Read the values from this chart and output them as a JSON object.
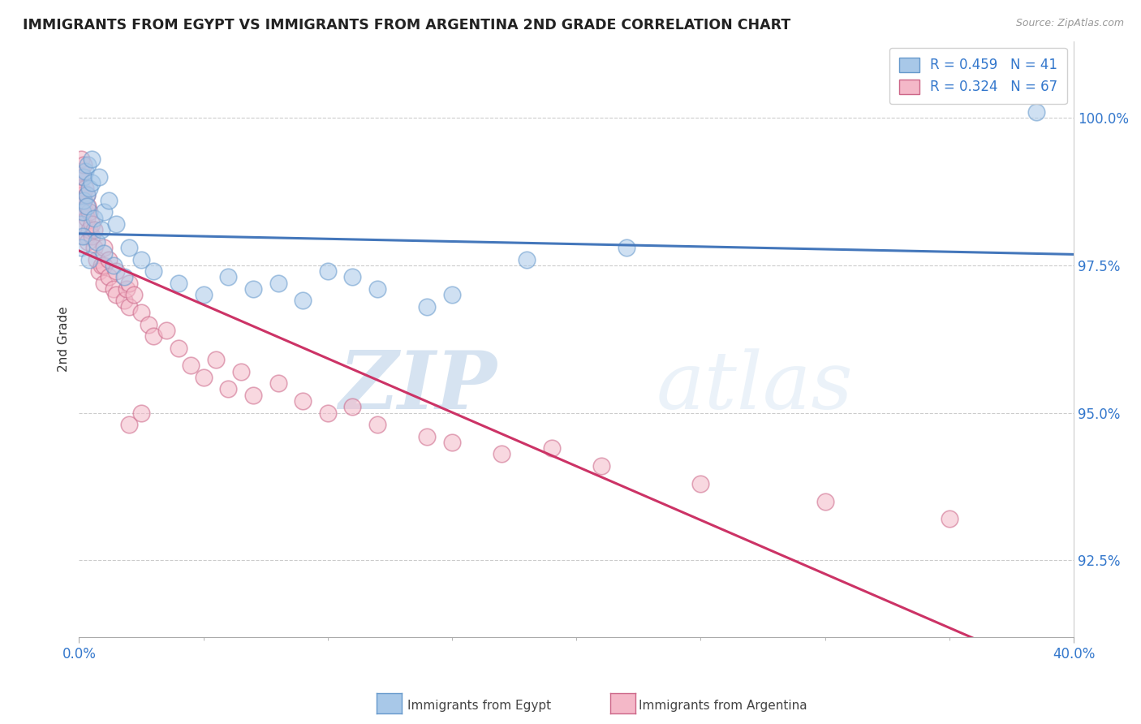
{
  "title": "IMMIGRANTS FROM EGYPT VS IMMIGRANTS FROM ARGENTINA 2ND GRADE CORRELATION CHART",
  "source": "Source: ZipAtlas.com",
  "ylabel": "2nd Grade",
  "xlim": [
    0.0,
    40.0
  ],
  "ylim": [
    91.2,
    101.3
  ],
  "ytick_labels": [
    "92.5%",
    "95.0%",
    "97.5%",
    "100.0%"
  ],
  "ytick_values": [
    92.5,
    95.0,
    97.5,
    100.0
  ],
  "xtick_labels": [
    "0.0%",
    "40.0%"
  ],
  "xtick_values": [
    0.0,
    40.0
  ],
  "egypt_color": "#a8c8e8",
  "egypt_edge": "#6699cc",
  "argentina_color": "#f4b8c8",
  "argentina_edge": "#cc6688",
  "egypt_R": 0.459,
  "egypt_N": 41,
  "argentina_R": 0.324,
  "argentina_N": 67,
  "legend_label_egypt": "Immigrants from Egypt",
  "legend_label_argentina": "Immigrants from Argentina",
  "egypt_x": [
    0.1,
    0.1,
    0.15,
    0.15,
    0.2,
    0.2,
    0.25,
    0.3,
    0.3,
    0.35,
    0.4,
    0.4,
    0.5,
    0.5,
    0.6,
    0.7,
    0.8,
    0.9,
    1.0,
    1.0,
    1.2,
    1.4,
    1.5,
    1.8,
    2.0,
    2.5,
    3.0,
    4.0,
    5.0,
    6.0,
    7.0,
    8.0,
    9.0,
    10.0,
    11.0,
    12.0,
    14.0,
    15.0,
    18.0,
    22.0,
    38.5
  ],
  "egypt_y": [
    97.8,
    98.2,
    98.4,
    98.0,
    99.0,
    98.6,
    99.1,
    98.7,
    98.5,
    99.2,
    97.6,
    98.8,
    98.9,
    99.3,
    98.3,
    97.9,
    99.0,
    98.1,
    97.7,
    98.4,
    98.6,
    97.5,
    98.2,
    97.3,
    97.8,
    97.6,
    97.4,
    97.2,
    97.0,
    97.3,
    97.1,
    97.2,
    96.9,
    97.4,
    97.3,
    97.1,
    96.8,
    97.0,
    97.6,
    97.8,
    100.1
  ],
  "argentina_x": [
    0.05,
    0.05,
    0.08,
    0.1,
    0.1,
    0.1,
    0.12,
    0.15,
    0.15,
    0.2,
    0.2,
    0.2,
    0.25,
    0.25,
    0.3,
    0.3,
    0.3,
    0.35,
    0.35,
    0.4,
    0.4,
    0.5,
    0.5,
    0.6,
    0.6,
    0.7,
    0.8,
    0.9,
    1.0,
    1.0,
    1.0,
    1.2,
    1.2,
    1.4,
    1.5,
    1.5,
    1.8,
    1.9,
    2.0,
    2.0,
    2.2,
    2.5,
    2.8,
    3.0,
    3.5,
    4.0,
    4.5,
    5.0,
    5.5,
    6.0,
    6.5,
    7.0,
    8.0,
    9.0,
    10.0,
    11.0,
    12.0,
    14.0,
    15.0,
    17.0,
    19.0,
    21.0,
    25.0,
    30.0,
    35.0,
    2.0,
    2.5
  ],
  "argentina_y": [
    98.5,
    99.0,
    98.8,
    98.6,
    99.1,
    99.3,
    98.4,
    98.7,
    99.0,
    98.2,
    98.6,
    99.2,
    98.4,
    98.8,
    98.0,
    98.3,
    98.7,
    97.9,
    98.5,
    98.1,
    98.4,
    98.0,
    98.2,
    97.8,
    98.1,
    97.6,
    97.4,
    97.5,
    97.2,
    97.5,
    97.8,
    97.3,
    97.6,
    97.1,
    97.0,
    97.4,
    96.9,
    97.1,
    97.2,
    96.8,
    97.0,
    96.7,
    96.5,
    96.3,
    96.4,
    96.1,
    95.8,
    95.6,
    95.9,
    95.4,
    95.7,
    95.3,
    95.5,
    95.2,
    95.0,
    95.1,
    94.8,
    94.6,
    94.5,
    94.3,
    94.4,
    94.1,
    93.8,
    93.5,
    93.2,
    94.8,
    95.0
  ],
  "watermark_zip": "ZIP",
  "watermark_atlas": "atlas",
  "bg_color": "#ffffff",
  "grid_color": "#cccccc",
  "trend_color_egypt": "#4477bb",
  "trend_color_argentina": "#cc3366"
}
